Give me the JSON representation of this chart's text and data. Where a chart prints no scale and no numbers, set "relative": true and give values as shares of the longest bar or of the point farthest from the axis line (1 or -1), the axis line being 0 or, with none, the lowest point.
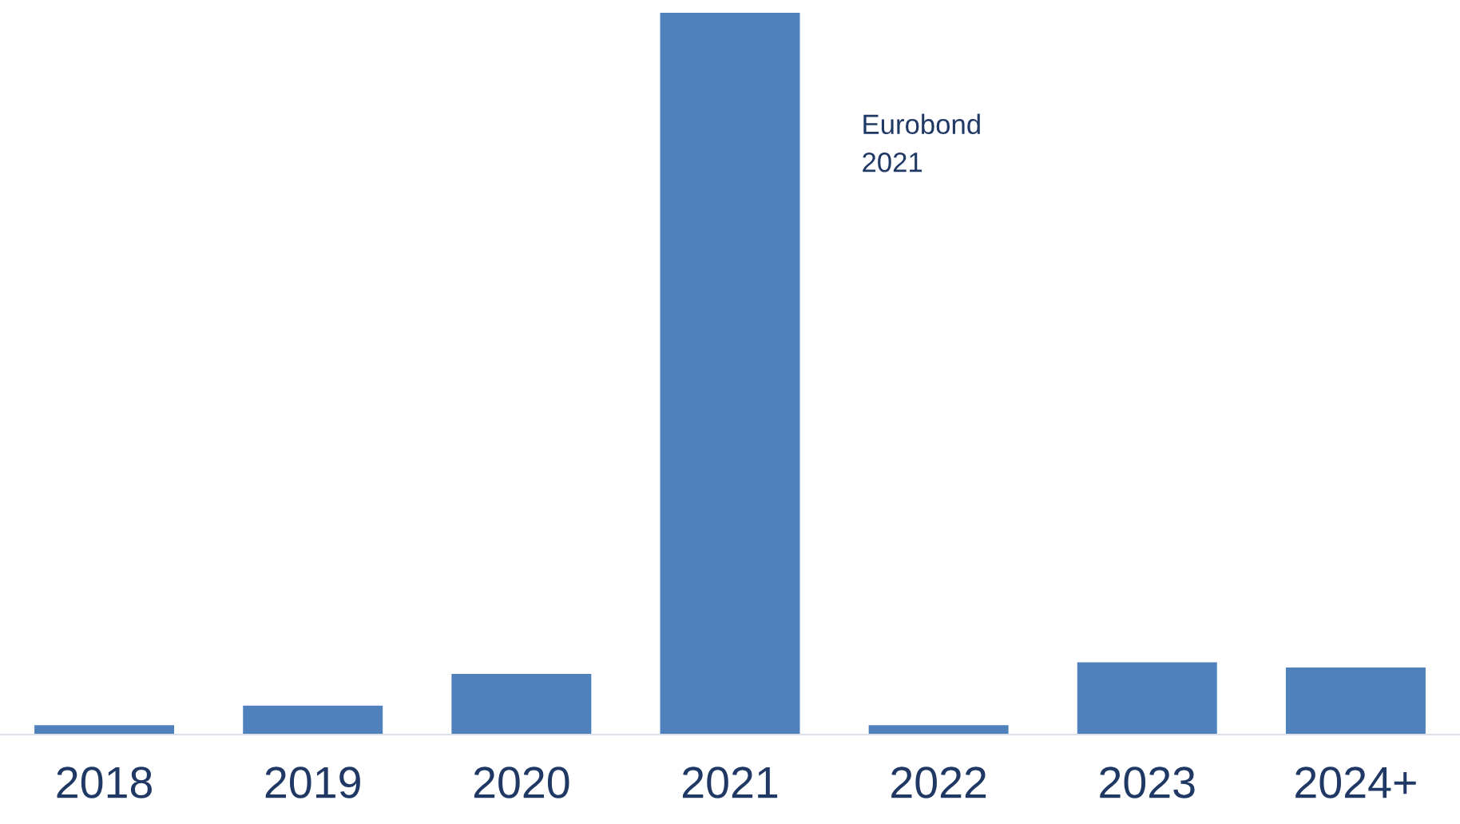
{
  "chart_data": {
    "type": "bar",
    "relative": true,
    "categories": [
      "2018",
      "2019",
      "2020",
      "2021",
      "2022",
      "2023",
      "2024+"
    ],
    "values": [
      0.013,
      0.04,
      0.084,
      1,
      0.013,
      0.1,
      0.093
    ],
    "color": "#4f81bd",
    "annotations": [
      "Eurobond\n2021"
    ],
    "grid": false,
    "legend": false
  }
}
